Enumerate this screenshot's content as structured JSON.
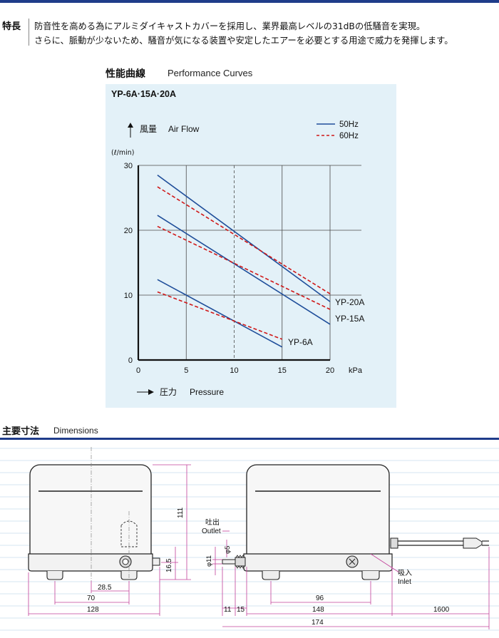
{
  "features": {
    "label": "特長",
    "lines": [
      "防音性を高める為にアルミダイキャストカバーを採用し、業界最高レベルの31dBの低騒音を実現。",
      "さらに、脈動が少ないため、騒音が気になる装置や安定したエアーを必要とする用途で威力を発揮します。"
    ]
  },
  "performance": {
    "title_jp": "性能曲線",
    "title_en": "Performance Curves"
  },
  "chart_data": {
    "type": "line",
    "title": "YP-6A·15A·20A",
    "ylabel_jp": "風量",
    "ylabel_en": "Air Flow",
    "yunit": "(ℓ/min)",
    "xlabel_jp": "圧力",
    "xlabel_en": "Pressure",
    "xunit": "kPa",
    "xlim": [
      0,
      20
    ],
    "ylim": [
      0,
      30
    ],
    "xticks": [
      "0",
      "5",
      "10",
      "15",
      "20"
    ],
    "yticks": [
      "0",
      "10",
      "20",
      "30"
    ],
    "legend": [
      {
        "name": "50Hz",
        "color": "#1f4e9a",
        "style": "solid"
      },
      {
        "name": "60Hz",
        "color": "#d01818",
        "style": "dashed"
      }
    ],
    "legend_position": "top-right",
    "grid": true,
    "series": [
      {
        "model": "YP-20A",
        "freq": "50Hz",
        "x": [
          2,
          20
        ],
        "y": [
          28.5,
          9.0
        ]
      },
      {
        "model": "YP-20A",
        "freq": "60Hz",
        "x": [
          2,
          20
        ],
        "y": [
          26.7,
          10.2
        ]
      },
      {
        "model": "YP-15A",
        "freq": "50Hz",
        "x": [
          2,
          20
        ],
        "y": [
          22.3,
          5.5
        ]
      },
      {
        "model": "YP-15A",
        "freq": "60Hz",
        "x": [
          2,
          20
        ],
        "y": [
          20.6,
          7.8
        ]
      },
      {
        "model": "YP-6A",
        "freq": "50Hz",
        "x": [
          2,
          15
        ],
        "y": [
          12.4,
          2.0
        ]
      },
      {
        "model": "YP-6A",
        "freq": "60Hz",
        "x": [
          2,
          15
        ],
        "y": [
          10.5,
          3.2
        ]
      }
    ],
    "annotations": [
      "YP-20A",
      "YP-15A",
      "YP-6A"
    ]
  },
  "dimensions": {
    "title_jp": "主要寸法",
    "title_en": "Dimensions",
    "labels": {
      "outlet_jp": "吐出",
      "outlet_en": "Outlet",
      "inlet_jp": "吸入",
      "inlet_en": "Inlet"
    },
    "values": {
      "height": "111",
      "foot_height": "16.5",
      "w1": "28.5",
      "w2": "70",
      "w3": "128",
      "d11": "11",
      "d15": "15",
      "d96": "96",
      "d148": "148",
      "d174": "174",
      "d1600": "1600",
      "phi11": "φ11",
      "phi5": "φ5"
    }
  }
}
